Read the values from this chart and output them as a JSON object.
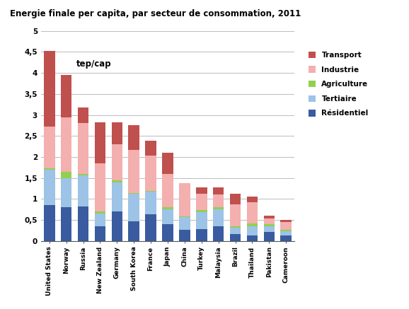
{
  "title": "Energie finale per capita, par secteur de consommation, 2011",
  "ylabel_annotation": "tep/cap",
  "categories": [
    "United States",
    "Norway",
    "Russia",
    "New Zealand",
    "Germany",
    "South Korea",
    "France",
    "Japan",
    "China",
    "Turkey",
    "Malaysia",
    "Brazil",
    "Thailand",
    "Pakistan",
    "Cameroon"
  ],
  "sectors": [
    "Résidentiel",
    "Tertiaire",
    "Agriculture",
    "Industrie",
    "Transport"
  ],
  "colors": [
    "#3A5BA0",
    "#9DC3E6",
    "#92D050",
    "#F4AFAF",
    "#C0504D"
  ],
  "bar_data": [
    [
      0.85,
      0.85,
      0.03,
      1.0,
      1.8
    ],
    [
      0.8,
      0.7,
      0.15,
      1.3,
      1.0
    ],
    [
      0.82,
      0.75,
      0.03,
      1.2,
      0.38
    ],
    [
      0.35,
      0.3,
      0.05,
      1.15,
      0.98
    ],
    [
      0.7,
      0.7,
      0.05,
      0.85,
      0.52
    ],
    [
      0.47,
      0.65,
      0.02,
      1.02,
      0.59
    ],
    [
      0.63,
      0.55,
      0.02,
      0.83,
      0.35
    ],
    [
      0.4,
      0.35,
      0.05,
      0.8,
      0.5
    ],
    [
      0.27,
      0.3,
      0.02,
      0.79,
      0.0
    ],
    [
      0.28,
      0.4,
      0.05,
      0.4,
      0.14
    ],
    [
      0.35,
      0.4,
      0.05,
      0.3,
      0.17
    ],
    [
      0.16,
      0.16,
      0.03,
      0.52,
      0.25
    ],
    [
      0.13,
      0.22,
      0.07,
      0.5,
      0.14
    ],
    [
      0.22,
      0.13,
      0.05,
      0.13,
      0.07
    ],
    [
      0.13,
      0.1,
      0.03,
      0.2,
      0.04
    ]
  ],
  "ylim": [
    0,
    5
  ],
  "yticks": [
    0,
    0.5,
    1.0,
    1.5,
    2.0,
    2.5,
    3.0,
    3.5,
    4.0,
    4.5,
    5.0
  ],
  "ytick_labels": [
    "0",
    "0,5",
    "1",
    "1,5",
    "2",
    "2,5",
    "3",
    "3,5",
    "4",
    "4,5",
    "5"
  ],
  "legend_labels": [
    "Transport",
    "Industrie",
    "Agriculture",
    "Tertiaire",
    "Résidentiel"
  ],
  "legend_colors": [
    "#C0504D",
    "#F4AFAF",
    "#92D050",
    "#9DC3E6",
    "#3A5BA0"
  ],
  "background_color": "#FFFFFF",
  "grid_color": "#BBBBBB"
}
